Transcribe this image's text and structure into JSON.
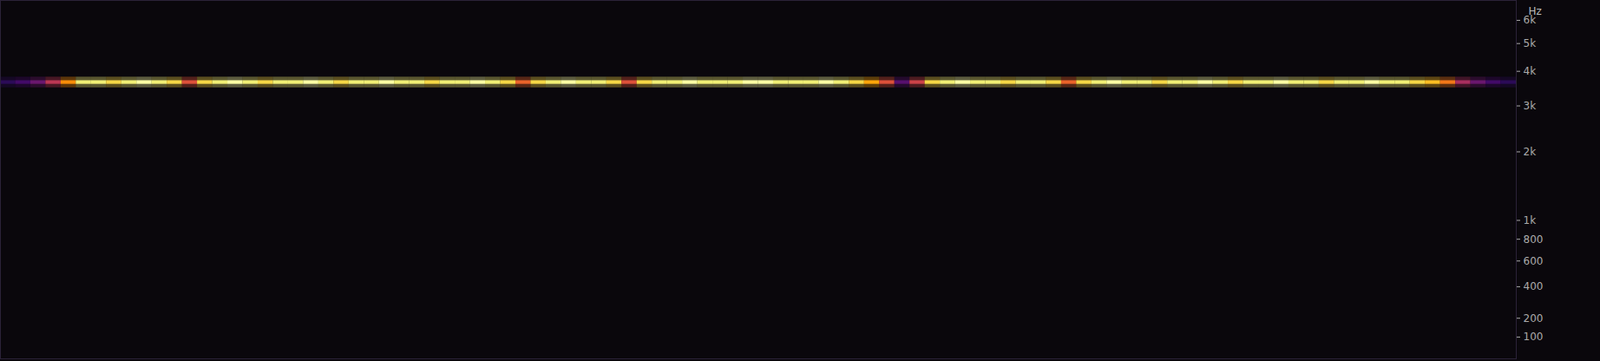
{
  "chart_data": {
    "type": "heatmap",
    "x": [
      0,
      1,
      2,
      3,
      4,
      5,
      6,
      7,
      8,
      9,
      10,
      11,
      12,
      13,
      14,
      15,
      16,
      17,
      18,
      19,
      20,
      21,
      22,
      23,
      24,
      25,
      26,
      27,
      28,
      29,
      30,
      31,
      32,
      33,
      34,
      35,
      36,
      37,
      38,
      39,
      40,
      41,
      42,
      43,
      44,
      45,
      46,
      47,
      48,
      49,
      50,
      51,
      52,
      53,
      54,
      55,
      56,
      57,
      58,
      59,
      60,
      61,
      62,
      63,
      64,
      65,
      66,
      67,
      68,
      69,
      70,
      71,
      72,
      73,
      74,
      75,
      76,
      77,
      78,
      79,
      80,
      81,
      82,
      83,
      84,
      85,
      86,
      87,
      88,
      89,
      90,
      91,
      92,
      93,
      94,
      95,
      96,
      97,
      98,
      99
    ],
    "values": [
      0.15,
      0.2,
      0.3,
      0.5,
      0.75,
      0.95,
      0.95,
      0.9,
      0.95,
      1.0,
      0.95,
      0.9,
      0.6,
      0.9,
      0.95,
      1.0,
      0.95,
      0.9,
      0.95,
      0.95,
      1.0,
      0.95,
      0.9,
      0.95,
      0.95,
      1.0,
      0.95,
      0.95,
      0.9,
      0.95,
      0.95,
      1.0,
      0.95,
      0.9,
      0.65,
      0.9,
      0.95,
      1.0,
      0.95,
      0.95,
      0.9,
      0.6,
      0.9,
      0.95,
      0.95,
      1.0,
      0.95,
      0.95,
      0.95,
      1.0,
      1.0,
      0.95,
      0.95,
      0.95,
      1.0,
      0.95,
      0.9,
      0.8,
      0.6,
      0.25,
      0.55,
      0.9,
      0.95,
      1.0,
      0.95,
      0.95,
      0.9,
      0.95,
      0.95,
      0.9,
      0.65,
      0.9,
      0.95,
      1.0,
      0.95,
      0.95,
      0.9,
      0.95,
      0.95,
      1.0,
      0.95,
      0.9,
      0.95,
      0.95,
      1.0,
      0.95,
      0.95,
      0.9,
      0.95,
      0.95,
      1.0,
      0.95,
      0.95,
      0.9,
      0.85,
      0.7,
      0.45,
      0.3,
      0.2,
      0.15
    ],
    "frequency": 3650,
    "xlim": [
      0,
      100
    ],
    "ylim": [
      0,
      7000
    ],
    "yticks": [
      100,
      200,
      400,
      600,
      800,
      {
        "value": 1000,
        "label": "1k"
      },
      {
        "value": 2000,
        "label": "2k"
      },
      {
        "value": 3000,
        "label": "3k"
      },
      {
        "value": 4000,
        "label": "4k"
      },
      {
        "value": 5000,
        "label": "5k"
      },
      {
        "value": 6000,
        "label": "6k"
      }
    ],
    "y_label": "Hz",
    "log": "y",
    "color": "inferno",
    "zlim": [
      0,
      1
    ],
    "tick_labels": "y"
  }
}
